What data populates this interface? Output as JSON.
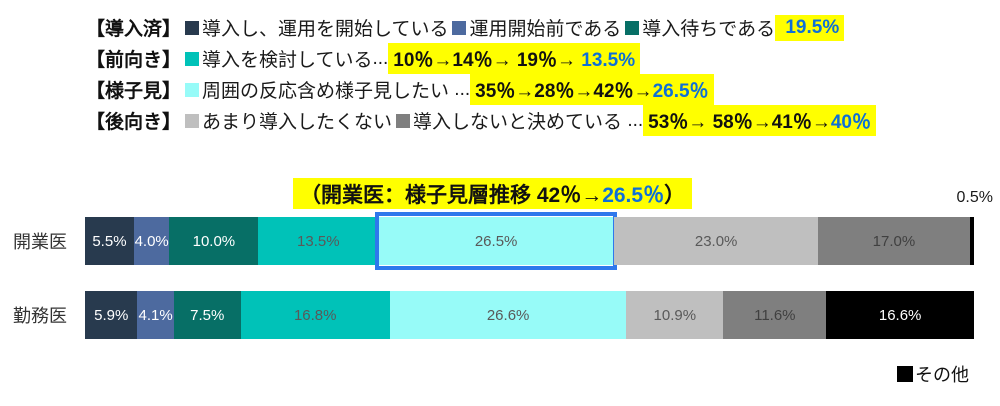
{
  "colors": {
    "highlight_yellow": "#FFFF00",
    "accent_blue_text": "#0D6FD8",
    "highlight_border": "#2E78EC"
  },
  "legend": {
    "rows": [
      {
        "header": "【導入済】",
        "items": [
          {
            "color": "#283A4E",
            "label": "導入し、運用を開始している"
          },
          {
            "color": "#4D6A9F",
            "label": "運用開始前である"
          },
          {
            "color": "#076F66",
            "label": "導入待ちである"
          }
        ],
        "plain": "",
        "hl_black": " ",
        "hl_blue": "19.5%"
      },
      {
        "header": "【前向き】",
        "items": [
          {
            "color": "#00C2B8",
            "label": "導入を検討している"
          }
        ],
        "plain": "...",
        "hl_black": "10％→14％→ 19％→ ",
        "hl_blue": "13.5%"
      },
      {
        "header": "【様子見】",
        "items": [
          {
            "color": "#97FBF8",
            "label": "周囲の反応含め様子見したい"
          }
        ],
        "plain": " ...",
        "hl_black": "35％→28％→42％→",
        "hl_blue": "26.5％"
      },
      {
        "header": "【後向き】",
        "items": [
          {
            "color": "#BFBFBF",
            "label": "あまり導入したくない"
          },
          {
            "color": "#7F7F7F",
            "label": "導入しないと決めている"
          }
        ],
        "plain": " ...",
        "hl_black": "53％→ 58％→41％→",
        "hl_blue": "40％"
      }
    ]
  },
  "chart_title": {
    "pre": "（開業医：様子見層推移 42％→",
    "blue": "26.5％",
    "post": "）"
  },
  "outside_label": "0.5%",
  "other_legend": {
    "label": "その他",
    "color": "#000000"
  },
  "chart_data": {
    "type": "bar",
    "stacked": true,
    "orientation": "horizontal",
    "unit": "%",
    "xlim": [
      0,
      100
    ],
    "categories": [
      "開業医",
      "勤務医"
    ],
    "series": [
      {
        "name": "導入し、運用を開始している",
        "color": "#283A4E",
        "label_color": "#FFFFFF",
        "values": [
          5.5,
          5.9
        ]
      },
      {
        "name": "運用開始前である",
        "color": "#4D6A9F",
        "label_color": "#FFFFFF",
        "values": [
          4.0,
          4.1
        ]
      },
      {
        "name": "導入待ちである",
        "color": "#076F66",
        "label_color": "#FFFFFF",
        "values": [
          10.0,
          7.5
        ]
      },
      {
        "name": "導入を検討している",
        "color": "#00C2B8",
        "label_color": "#595959",
        "values": [
          13.5,
          16.8
        ]
      },
      {
        "name": "周囲の反応含め様子見したい",
        "color": "#97FBF8",
        "label_color": "#595959",
        "values": [
          26.5,
          26.6
        ]
      },
      {
        "name": "あまり導入したくない",
        "color": "#BFBFBF",
        "label_color": "#595959",
        "values": [
          23.0,
          10.9
        ]
      },
      {
        "name": "導入しないと決めている",
        "color": "#7F7F7F",
        "label_color": "#404040",
        "values": [
          17.0,
          11.6
        ]
      },
      {
        "name": "その他",
        "color": "#000000",
        "label_color": "#FFFFFF",
        "values": [
          0.5,
          16.6
        ]
      }
    ],
    "value_labels": [
      [
        "5.5%",
        "4.0%",
        "10.0%",
        "13.5%",
        "26.5%",
        "23.0%",
        "17.0%",
        ""
      ],
      [
        "5.9%",
        "4.1%",
        "7.5%",
        "16.8%",
        "26.6%",
        "10.9%",
        "11.6%",
        "16.6%"
      ]
    ],
    "highlight": {
      "row": 0,
      "series": 4
    },
    "title": "（開業医：様子見層推移 42％→26.5％）"
  }
}
